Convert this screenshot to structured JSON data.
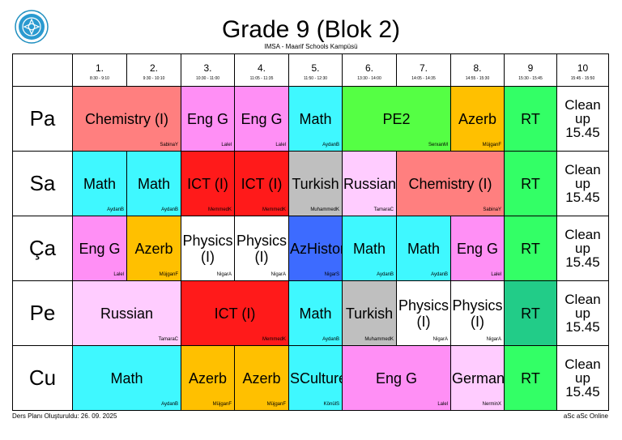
{
  "header": {
    "title": "Grade 9 (Blok 2)",
    "subtitle": "IMSA - Maarif Schools Kampüsü",
    "logo_icon": "school-seal-icon"
  },
  "periods": [
    {
      "num": "1.",
      "time": "8:30 - 9:10"
    },
    {
      "num": "2.",
      "time": "9:30 - 10:10"
    },
    {
      "num": "3.",
      "time": "10:30 - 11:00"
    },
    {
      "num": "4.",
      "time": "11:05 - 11:35"
    },
    {
      "num": "5.",
      "time": "11:50 - 12:30"
    },
    {
      "num": "6.",
      "time": "13:30 - 14:00"
    },
    {
      "num": "7.",
      "time": "14:05 - 14:35"
    },
    {
      "num": "8.",
      "time": "14:55 - 15:30"
    },
    {
      "num": "9",
      "time": "15:30 - 15:45"
    },
    {
      "num": "10",
      "time": "15:45 - 15:50"
    }
  ],
  "days": [
    {
      "name": "Pa",
      "cells": [
        {
          "subject": "Chemistry (I)",
          "teacher": "SabinaY",
          "span": 2,
          "bg": "#ff7f7f"
        },
        {
          "subject": "Eng G",
          "teacher": "Lalel",
          "span": 1,
          "bg": "#ff8ff5"
        },
        {
          "subject": "Eng G",
          "teacher": "Lalel",
          "span": 1,
          "bg": "#ff8ff5"
        },
        {
          "subject": "Math",
          "teacher": "AydanB",
          "span": 1,
          "bg": "#3ff8ff"
        },
        {
          "subject": "PE2",
          "teacher": "SerxanM",
          "span": 2,
          "bg": "#55ff44"
        },
        {
          "subject": "Azerb",
          "teacher": "MüjganF",
          "span": 1,
          "bg": "#ffc000"
        },
        {
          "subject": "RT",
          "teacher": "",
          "span": 1,
          "bg": "#33ff66"
        },
        {
          "subject": "Clean up 15.45",
          "teacher": "",
          "span": 1,
          "bg": "#ffffff",
          "clean": true
        }
      ]
    },
    {
      "name": "Sa",
      "cells": [
        {
          "subject": "Math",
          "teacher": "AydanB",
          "span": 1,
          "bg": "#3ff8ff"
        },
        {
          "subject": "Math",
          "teacher": "AydanB",
          "span": 1,
          "bg": "#3ff8ff"
        },
        {
          "subject": "ICT (I)",
          "teacher": "MemmedK",
          "span": 1,
          "bg": "#ff1a1a"
        },
        {
          "subject": "ICT (I)",
          "teacher": "MemmedK",
          "span": 1,
          "bg": "#ff1a1a"
        },
        {
          "subject": "Turkish",
          "teacher": "MuhammedK",
          "span": 1,
          "bg": "#bfbfbf"
        },
        {
          "subject": "Russian",
          "teacher": "TamaraC",
          "span": 1,
          "bg": "#ffccff"
        },
        {
          "subject": "Chemistry (I)",
          "teacher": "SabinaY",
          "span": 2,
          "bg": "#ff7f7f"
        },
        {
          "subject": "RT",
          "teacher": "",
          "span": 1,
          "bg": "#33ff66"
        },
        {
          "subject": "Clean up 15.45",
          "teacher": "",
          "span": 1,
          "bg": "#ffffff",
          "clean": true
        }
      ]
    },
    {
      "name": "Ça",
      "cells": [
        {
          "subject": "Eng G",
          "teacher": "Lalel",
          "span": 1,
          "bg": "#ff8ff5"
        },
        {
          "subject": "Azerb",
          "teacher": "MüjganF",
          "span": 1,
          "bg": "#ffc000"
        },
        {
          "subject": "Physics (I)",
          "teacher": "NigarA",
          "span": 1,
          "bg": "#ffffff"
        },
        {
          "subject": "Physics (I)",
          "teacher": "NigarA",
          "span": 1,
          "bg": "#ffffff"
        },
        {
          "subject": "AzHistory",
          "teacher": "NigarS",
          "span": 1,
          "bg": "#3d6bff"
        },
        {
          "subject": "Math",
          "teacher": "AydanB",
          "span": 1,
          "bg": "#3ff8ff"
        },
        {
          "subject": "Math",
          "teacher": "AydanB",
          "span": 1,
          "bg": "#3ff8ff"
        },
        {
          "subject": "Eng G",
          "teacher": "Lalel",
          "span": 1,
          "bg": "#ff8ff5"
        },
        {
          "subject": "RT",
          "teacher": "",
          "span": 1,
          "bg": "#33ff66"
        },
        {
          "subject": "Clean up 15.45",
          "teacher": "",
          "span": 1,
          "bg": "#ffffff",
          "clean": true
        }
      ]
    },
    {
      "name": "Pe",
      "cells": [
        {
          "subject": "Russian",
          "teacher": "TamaraC",
          "span": 2,
          "bg": "#ffccff"
        },
        {
          "subject": "ICT (I)",
          "teacher": "MemmedK",
          "span": 2,
          "bg": "#ff1a1a"
        },
        {
          "subject": "Math",
          "teacher": "AydanB",
          "span": 1,
          "bg": "#3ff8ff"
        },
        {
          "subject": "Turkish",
          "teacher": "MuhammedK",
          "span": 1,
          "bg": "#bfbfbf"
        },
        {
          "subject": "Physics (I)",
          "teacher": "NigarA",
          "span": 1,
          "bg": "#ffffff"
        },
        {
          "subject": "Physics (I)",
          "teacher": "NigarA",
          "span": 1,
          "bg": "#ffffff"
        },
        {
          "subject": "RT",
          "teacher": "",
          "span": 1,
          "bg": "#22cc88"
        },
        {
          "subject": "Clean up 15.45",
          "teacher": "",
          "span": 1,
          "bg": "#ffffff",
          "clean": true
        }
      ]
    },
    {
      "name": "Cu",
      "cells": [
        {
          "subject": "Math",
          "teacher": "AydanB",
          "span": 2,
          "bg": "#3ff8ff"
        },
        {
          "subject": "Azerb",
          "teacher": "MüjganF",
          "span": 1,
          "bg": "#ffc000"
        },
        {
          "subject": "Azerb",
          "teacher": "MüjganF",
          "span": 1,
          "bg": "#ffc000"
        },
        {
          "subject": "SCulture",
          "teacher": "KönülS",
          "span": 1,
          "bg": "#3ff8ff"
        },
        {
          "subject": "Eng G",
          "teacher": "Lalel",
          "span": 2,
          "bg": "#ff8ff5"
        },
        {
          "subject": "German",
          "teacher": "NerminX",
          "span": 1,
          "bg": "#ffccff"
        },
        {
          "subject": "RT",
          "teacher": "",
          "span": 1,
          "bg": "#33ff66"
        },
        {
          "subject": "Clean up 15.45",
          "teacher": "",
          "span": 1,
          "bg": "#ffffff",
          "clean": true
        }
      ]
    }
  ],
  "footer": {
    "created": "Ders Planı Oluşturuldu: 26. 09. 2025",
    "brand": "aSc aSc Online"
  }
}
